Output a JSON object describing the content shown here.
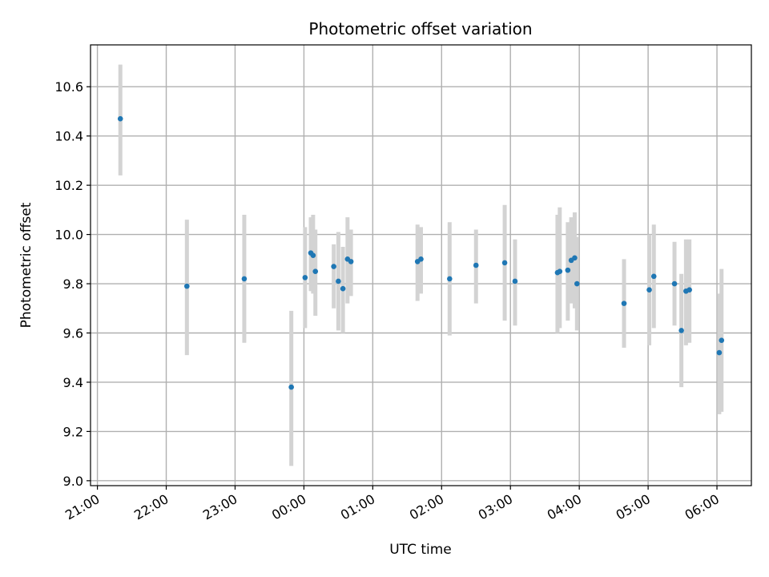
{
  "chart_data": {
    "type": "scatter",
    "title": "Photometric offset variation",
    "xlabel": "UTC time",
    "ylabel": "Photometric offset",
    "x_axis_kind": "time",
    "x_ticks": [
      "21:00",
      "22:00",
      "23:00",
      "00:00",
      "01:00",
      "02:00",
      "03:00",
      "04:00",
      "05:00",
      "06:00"
    ],
    "y_ticks": [
      "9.0",
      "9.2",
      "9.4",
      "9.6",
      "9.8",
      "10.0",
      "10.2",
      "10.4",
      "10.6"
    ],
    "xlim": [
      "20:54",
      "06:30"
    ],
    "ylim": [
      8.98,
      10.77
    ],
    "grid": true,
    "colors": {
      "point": "#1f77b4",
      "errorbar": "#d3d3d3",
      "grid": "#b0b0b0"
    },
    "points": [
      {
        "x": "21:20",
        "y": 10.47,
        "ylow": 10.24,
        "yhigh": 10.69
      },
      {
        "x": "22:18",
        "y": 9.79,
        "ylow": 9.51,
        "yhigh": 10.06
      },
      {
        "x": "23:08",
        "y": 9.82,
        "ylow": 9.56,
        "yhigh": 10.08
      },
      {
        "x": "23:49",
        "y": 9.38,
        "ylow": 9.06,
        "yhigh": 9.69
      },
      {
        "x": "00:01",
        "y": 9.825,
        "ylow": 9.62,
        "yhigh": 10.03
      },
      {
        "x": "00:06",
        "y": 9.925,
        "ylow": 9.77,
        "yhigh": 10.07
      },
      {
        "x": "00:08",
        "y": 9.915,
        "ylow": 9.76,
        "yhigh": 10.08
      },
      {
        "x": "00:10",
        "y": 9.85,
        "ylow": 9.67,
        "yhigh": 10.02
      },
      {
        "x": "00:26",
        "y": 9.87,
        "ylow": 9.7,
        "yhigh": 9.96
      },
      {
        "x": "00:30",
        "y": 9.81,
        "ylow": 9.61,
        "yhigh": 10.01
      },
      {
        "x": "00:34",
        "y": 9.78,
        "ylow": 9.6,
        "yhigh": 9.95
      },
      {
        "x": "00:38",
        "y": 9.9,
        "ylow": 9.72,
        "yhigh": 10.07
      },
      {
        "x": "00:41",
        "y": 9.89,
        "ylow": 9.75,
        "yhigh": 10.02
      },
      {
        "x": "01:39",
        "y": 9.89,
        "ylow": 9.73,
        "yhigh": 10.04
      },
      {
        "x": "01:42",
        "y": 9.9,
        "ylow": 9.76,
        "yhigh": 10.03
      },
      {
        "x": "02:07",
        "y": 9.82,
        "ylow": 9.59,
        "yhigh": 10.05
      },
      {
        "x": "02:30",
        "y": 9.875,
        "ylow": 9.72,
        "yhigh": 10.02
      },
      {
        "x": "02:55",
        "y": 9.885,
        "ylow": 9.65,
        "yhigh": 10.12
      },
      {
        "x": "03:04",
        "y": 9.81,
        "ylow": 9.63,
        "yhigh": 9.98
      },
      {
        "x": "03:41",
        "y": 9.845,
        "ylow": 9.6,
        "yhigh": 10.08
      },
      {
        "x": "03:43",
        "y": 9.85,
        "ylow": 9.62,
        "yhigh": 10.11
      },
      {
        "x": "03:50",
        "y": 9.855,
        "ylow": 9.65,
        "yhigh": 10.05
      },
      {
        "x": "03:53",
        "y": 9.895,
        "ylow": 9.72,
        "yhigh": 10.07
      },
      {
        "x": "03:56",
        "y": 9.905,
        "ylow": 9.7,
        "yhigh": 10.09
      },
      {
        "x": "03:58",
        "y": 9.8,
        "ylow": 9.61,
        "yhigh": 9.99
      },
      {
        "x": "04:39",
        "y": 9.72,
        "ylow": 9.54,
        "yhigh": 9.9
      },
      {
        "x": "05:01",
        "y": 9.775,
        "ylow": 9.55,
        "yhigh": 10.0
      },
      {
        "x": "05:05",
        "y": 9.83,
        "ylow": 9.62,
        "yhigh": 10.04
      },
      {
        "x": "05:23",
        "y": 9.8,
        "ylow": 9.63,
        "yhigh": 9.97
      },
      {
        "x": "05:29",
        "y": 9.61,
        "ylow": 9.38,
        "yhigh": 9.84
      },
      {
        "x": "05:33",
        "y": 9.77,
        "ylow": 9.55,
        "yhigh": 9.98
      },
      {
        "x": "05:36",
        "y": 9.775,
        "ylow": 9.56,
        "yhigh": 9.98
      },
      {
        "x": "06:02",
        "y": 9.52,
        "ylow": 9.27,
        "yhigh": 9.76
      },
      {
        "x": "06:04",
        "y": 9.57,
        "ylow": 9.28,
        "yhigh": 9.86
      }
    ]
  }
}
